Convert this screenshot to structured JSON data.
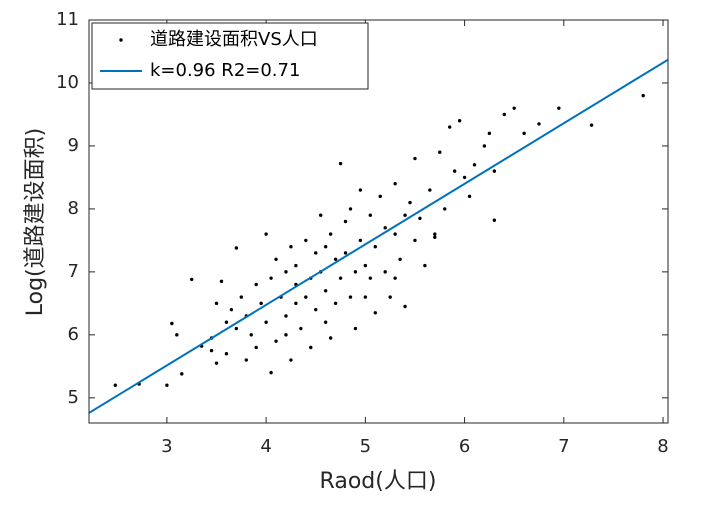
{
  "chart_data": {
    "type": "scatter",
    "xlabel": "Raod(人口)",
    "ylabel": "Log(道路建设面积)",
    "xlim": [
      2.215,
      8.05
    ],
    "ylim": [
      4.6,
      11
    ],
    "xticks": [
      3,
      4,
      5,
      6,
      7,
      8
    ],
    "yticks": [
      5,
      6,
      7,
      8,
      9,
      10,
      11
    ],
    "legend": "upper left",
    "series": [
      {
        "name": "道路建设面积VS人口",
        "type": "scatter",
        "color": "#000000",
        "x": [
          2.48,
          2.72,
          3.0,
          3.05,
          3.1,
          3.15,
          3.25,
          3.35,
          3.45,
          3.5,
          3.5,
          3.55,
          3.6,
          3.6,
          3.65,
          3.7,
          3.7,
          3.75,
          3.8,
          3.8,
          3.85,
          3.9,
          3.9,
          3.95,
          4.0,
          4.0,
          4.05,
          4.05,
          4.1,
          4.1,
          4.15,
          4.2,
          4.2,
          4.25,
          4.25,
          4.3,
          4.3,
          4.35,
          4.4,
          4.4,
          4.45,
          4.45,
          4.5,
          4.5,
          4.55,
          4.55,
          4.6,
          4.6,
          4.65,
          4.65,
          4.7,
          4.7,
          4.75,
          4.75,
          4.8,
          4.8,
          4.85,
          4.85,
          4.9,
          4.9,
          4.95,
          4.95,
          5.0,
          5.0,
          5.05,
          5.05,
          5.1,
          5.1,
          5.15,
          5.2,
          5.2,
          5.25,
          5.3,
          5.3,
          5.35,
          5.4,
          5.4,
          5.45,
          5.5,
          5.5,
          5.55,
          5.6,
          5.65,
          5.7,
          5.75,
          5.8,
          5.85,
          5.9,
          5.95,
          6.0,
          6.1,
          6.2,
          6.25,
          6.3,
          6.3,
          6.4,
          6.5,
          6.6,
          6.75,
          6.95,
          7.28,
          7.8,
          5.3,
          4.3,
          4.6,
          4.2,
          3.45,
          5.7,
          6.05
        ],
        "values": [
          5.2,
          5.22,
          5.2,
          6.18,
          6.0,
          5.38,
          6.88,
          5.82,
          5.95,
          6.5,
          5.55,
          6.85,
          6.2,
          5.7,
          6.4,
          7.38,
          6.1,
          6.6,
          5.6,
          6.3,
          6.0,
          6.8,
          5.8,
          6.5,
          7.6,
          6.2,
          5.4,
          6.9,
          7.2,
          5.9,
          6.6,
          7.0,
          6.3,
          7.4,
          5.6,
          6.8,
          7.1,
          6.1,
          7.5,
          6.6,
          6.9,
          5.8,
          7.3,
          6.4,
          7.0,
          7.9,
          6.7,
          6.2,
          7.6,
          5.95,
          7.2,
          6.5,
          8.72,
          6.9,
          7.8,
          7.3,
          6.6,
          8.0,
          7.0,
          6.1,
          7.5,
          8.3,
          7.1,
          6.6,
          7.9,
          6.9,
          7.4,
          6.35,
          8.2,
          7.0,
          7.7,
          6.6,
          7.6,
          8.4,
          7.2,
          6.45,
          7.9,
          8.1,
          7.5,
          8.8,
          7.85,
          7.1,
          8.3,
          7.6,
          8.9,
          8.0,
          9.3,
          8.6,
          9.4,
          8.5,
          8.7,
          9.0,
          9.2,
          7.82,
          8.6,
          9.5,
          9.6,
          9.2,
          9.35,
          9.6,
          9.33,
          9.8,
          6.9,
          6.5,
          7.4,
          6.0,
          5.75,
          7.55,
          8.2
        ]
      },
      {
        "name": "k=0.96 R2=0.71",
        "type": "line",
        "color": "#0072bd",
        "x": [
          2.215,
          8.05
        ],
        "values": [
          4.76,
          10.37
        ]
      }
    ]
  }
}
